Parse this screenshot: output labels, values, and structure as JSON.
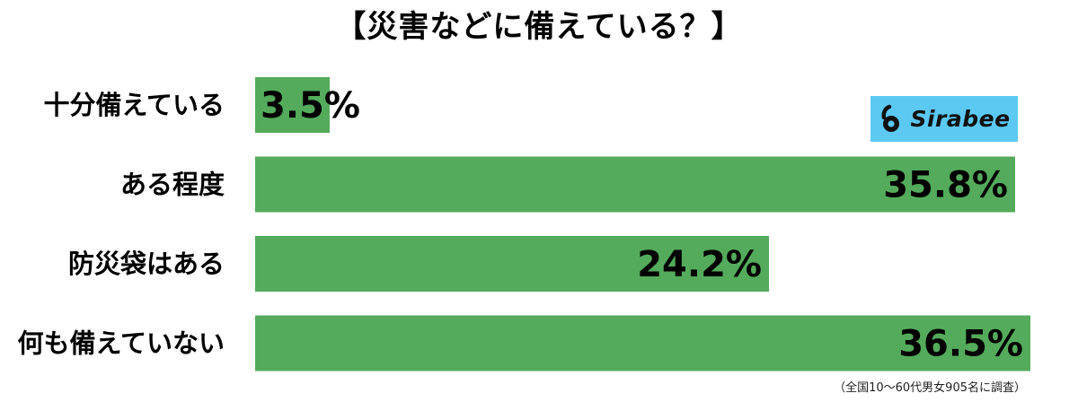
{
  "chart_data": {
    "type": "bar",
    "orientation": "horizontal",
    "title": "【災害などに備えている？】",
    "categories": [
      "十分備えている",
      "ある程度",
      "防災袋はある",
      "何も備えていない"
    ],
    "values": [
      3.5,
      35.8,
      24.2,
      36.5
    ],
    "value_labels": [
      "3.5%",
      "35.8%",
      "24.2%",
      "36.5%"
    ],
    "xlim": [
      0,
      36.5
    ],
    "grid": false,
    "bar_color": "#53ab5b"
  },
  "logo": {
    "text": "Sirabee",
    "background": "#5bc9f2"
  },
  "footnote": "（全国10～60代男女905名に調査）"
}
